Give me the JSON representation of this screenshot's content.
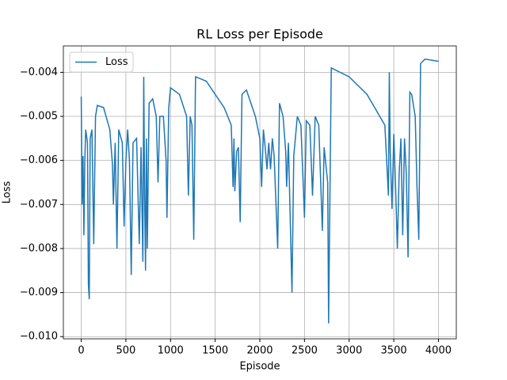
{
  "chart_data": {
    "type": "line",
    "title": "RL Loss per Episode",
    "x_label": "Episode",
    "y_label": "Loss",
    "x": [
      0,
      10,
      20,
      30,
      40,
      50,
      70,
      80,
      90,
      100,
      120,
      140,
      160,
      180,
      250,
      320,
      350,
      360,
      380,
      400,
      420,
      460,
      480,
      500,
      520,
      540,
      560,
      580,
      620,
      650,
      670,
      690,
      700,
      710,
      720,
      730,
      740,
      760,
      800,
      840,
      860,
      880,
      920,
      950,
      960,
      980,
      1000,
      1100,
      1180,
      1200,
      1220,
      1240,
      1260,
      1280,
      1400,
      1600,
      1680,
      1700,
      1710,
      1720,
      1740,
      1760,
      1780,
      1800,
      1850,
      1950,
      2000,
      2020,
      2040,
      2060,
      2080,
      2100,
      2120,
      2140,
      2160,
      2200,
      2220,
      2260,
      2290,
      2300,
      2320,
      2360,
      2380,
      2420,
      2460,
      2500,
      2520,
      2560,
      2590,
      2620,
      2660,
      2700,
      2720,
      2760,
      2770,
      2800,
      3000,
      3200,
      3400,
      3440,
      3450,
      3460,
      3480,
      3500,
      3520,
      3540,
      3560,
      3580,
      3600,
      3620,
      3640,
      3660,
      3680,
      3700,
      3740,
      3760,
      3780,
      3800,
      3850,
      4000
    ],
    "series": [
      {
        "name": "Loss",
        "color": "#1f77b4",
        "values": [
          -0.00455,
          -0.007,
          -0.0059,
          -0.0077,
          -0.006,
          -0.0053,
          -0.0056,
          -0.0088,
          -0.00915,
          -0.0055,
          -0.0053,
          -0.0079,
          -0.005,
          -0.00475,
          -0.0048,
          -0.0053,
          -0.0061,
          -0.007,
          -0.0056,
          -0.008,
          -0.0053,
          -0.0056,
          -0.0075,
          -0.006,
          -0.0053,
          -0.006,
          -0.0086,
          -0.0056,
          -0.0055,
          -0.0079,
          -0.0057,
          -0.0083,
          -0.0041,
          -0.0068,
          -0.0085,
          -0.0055,
          -0.008,
          -0.0047,
          -0.0046,
          -0.005,
          -0.0065,
          -0.005,
          -0.005,
          -0.006,
          -0.0073,
          -0.0048,
          -0.00435,
          -0.0045,
          -0.005,
          -0.0068,
          -0.005,
          -0.0052,
          -0.0078,
          -0.0041,
          -0.0042,
          -0.0048,
          -0.0052,
          -0.0066,
          -0.0055,
          -0.0067,
          -0.0058,
          -0.0057,
          -0.0074,
          -0.0045,
          -0.0044,
          -0.005,
          -0.0055,
          -0.0066,
          -0.0053,
          -0.0057,
          -0.0062,
          -0.0056,
          -0.0062,
          -0.0055,
          -0.0059,
          -0.008,
          -0.0047,
          -0.005,
          -0.0058,
          -0.0066,
          -0.0056,
          -0.009,
          -0.0059,
          -0.005,
          -0.0052,
          -0.0073,
          -0.0051,
          -0.0052,
          -0.0068,
          -0.005,
          -0.0052,
          -0.0076,
          -0.0057,
          -0.0065,
          -0.0097,
          -0.0039,
          -0.0041,
          -0.0045,
          -0.0052,
          -0.0068,
          -0.004,
          -0.0058,
          -0.0071,
          -0.0054,
          -0.0066,
          -0.008,
          -0.0063,
          -0.0055,
          -0.0077,
          -0.0055,
          -0.0063,
          -0.0082,
          -0.00445,
          -0.0045,
          -0.005,
          -0.0066,
          -0.0078,
          -0.0038,
          -0.0037,
          -0.00375
        ]
      }
    ],
    "xlim": [
      -200,
      4200
    ],
    "xticks": [
      0,
      500,
      1000,
      1500,
      2000,
      2500,
      3000,
      3500,
      4000
    ],
    "ylim": [
      -0.01005,
      -0.0034
    ],
    "yticks": [
      {
        "value": -0.01,
        "label": "−0.010"
      },
      {
        "value": -0.009,
        "label": "−0.009"
      },
      {
        "value": -0.008,
        "label": "−0.008"
      },
      {
        "value": -0.007,
        "label": "−0.007"
      },
      {
        "value": -0.006,
        "label": "−0.006"
      },
      {
        "value": -0.005,
        "label": "−0.005"
      },
      {
        "value": -0.004,
        "label": "−0.004"
      }
    ],
    "grid": true,
    "legend": "upper-left"
  }
}
